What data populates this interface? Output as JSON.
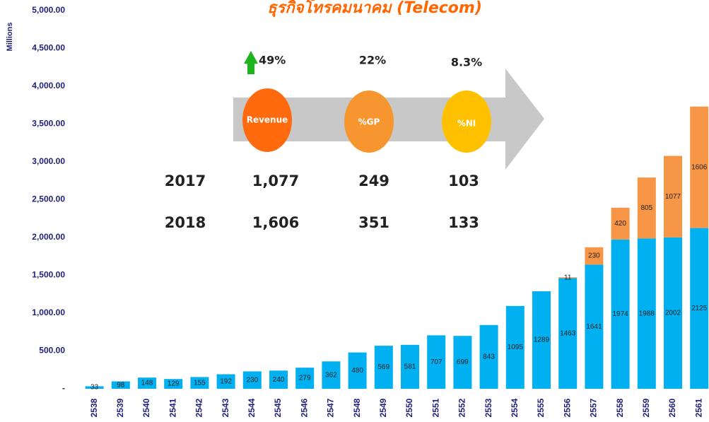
{
  "chart_data": {
    "type": "stacked_bar",
    "title": "ธุรกิจโทรคมนาคม (Telecom)",
    "y_label": "Millions",
    "categories": [
      "2538",
      "2539",
      "2540",
      "2541",
      "2542",
      "2543",
      "2544",
      "2545",
      "2546",
      "2547",
      "2548",
      "2549",
      "2550",
      "2551",
      "2552",
      "2553",
      "2554",
      "2555",
      "2556",
      "2557",
      "2558",
      "2559",
      "2560",
      "2561"
    ],
    "series": [
      {
        "color": "#00b0f0",
        "values": [
          33,
          98,
          148,
          129,
          155,
          192,
          230,
          240,
          279,
          362,
          480,
          569,
          581,
          707,
          699,
          843,
          1095,
          1289,
          1463,
          1641,
          1974,
          1988,
          2002,
          2125
        ]
      },
      {
        "color": "#f79646",
        "values": [
          null,
          null,
          null,
          null,
          null,
          null,
          null,
          null,
          null,
          null,
          null,
          null,
          null,
          null,
          null,
          null,
          null,
          null,
          11,
          230,
          420,
          805,
          1077,
          1606
        ]
      }
    ],
    "ylim": [
      0,
      5000
    ],
    "yticks": [
      {
        "value": 0,
        "label": "-"
      },
      {
        "value": 500,
        "label": "500.00"
      },
      {
        "value": 1000,
        "label": "1,000.00"
      },
      {
        "value": 1500,
        "label": "1,500.00"
      },
      {
        "value": 2000,
        "label": "2,000.00"
      },
      {
        "value": 2500,
        "label": "2,500.00"
      },
      {
        "value": 3000,
        "label": "3,000.00"
      },
      {
        "value": 3500,
        "label": "3,500.00"
      },
      {
        "value": 4000,
        "label": "4,000.00"
      },
      {
        "value": 4500,
        "label": "4,500.00"
      },
      {
        "value": 5000,
        "label": "5,000.00"
      }
    ],
    "grid": false,
    "annotations": {
      "growth": [
        "49%",
        "22%",
        "8.3%"
      ],
      "metrics": [
        "Revenue",
        "%GP",
        "%NI"
      ],
      "rows": [
        [
          "2017",
          "1,077",
          "249",
          "103"
        ],
        [
          "2018",
          "1,606",
          "351",
          "133"
        ]
      ]
    }
  }
}
